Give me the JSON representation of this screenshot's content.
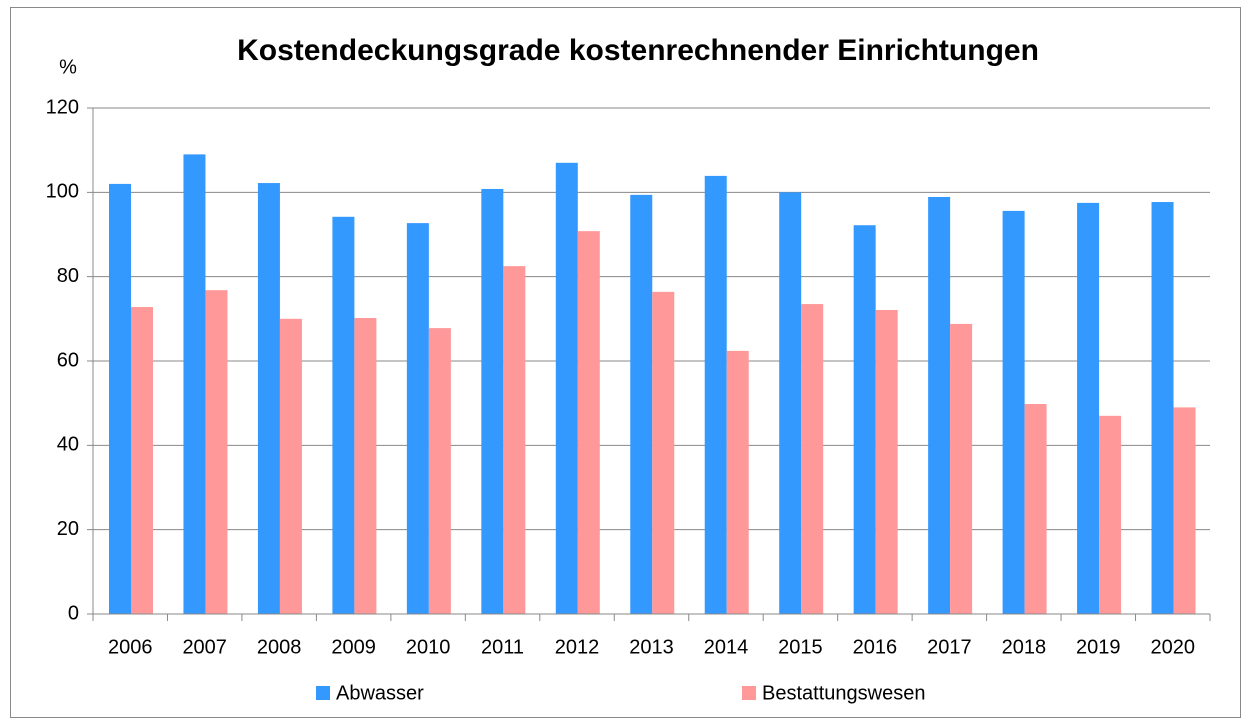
{
  "chart_data": {
    "type": "bar",
    "title": "Kostendeckungsgrade kostenrechnender Einrichtungen",
    "y_label": "%",
    "categories": [
      "2006",
      "2007",
      "2008",
      "2009",
      "2010",
      "2011",
      "2012",
      "2013",
      "2014",
      "2015",
      "2016",
      "2017",
      "2018",
      "2019",
      "2020"
    ],
    "series": [
      {
        "name": "Abwasser",
        "color": "#3399ff",
        "values": [
          102,
          109,
          102.2,
          94.2,
          92.7,
          100.8,
          107,
          99.4,
          103.9,
          100,
          92.2,
          98.9,
          95.6,
          97.5,
          97.7
        ]
      },
      {
        "name": "Bestattungswesen",
        "color": "#ff9999",
        "values": [
          72.8,
          76.8,
          70,
          70.2,
          67.8,
          82.5,
          90.8,
          76.4,
          62.4,
          73.5,
          72.1,
          68.8,
          49.8,
          47,
          49
        ]
      }
    ],
    "ylim": [
      0,
      120
    ],
    "yticks": [
      0,
      20,
      40,
      60,
      80,
      100,
      120
    ],
    "grid": true,
    "legend": "bottom"
  }
}
